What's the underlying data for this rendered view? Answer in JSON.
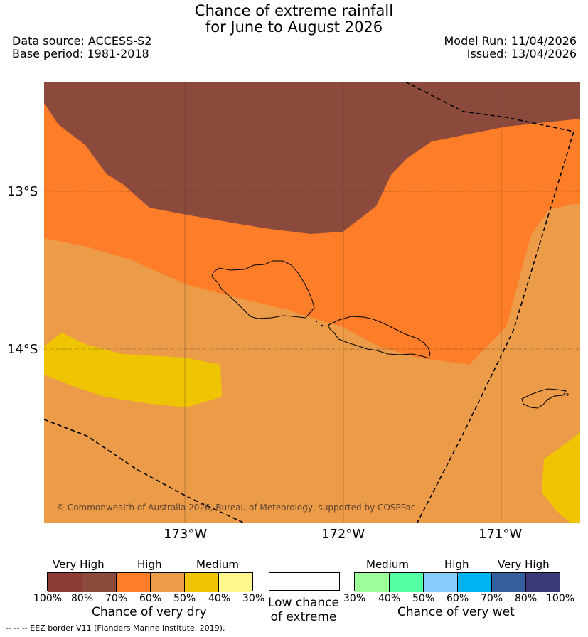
{
  "header": {
    "title_line1": "Chance of extreme rainfall",
    "title_line2": "for June to August 2026",
    "data_source": "Data source: ACCESS-S2",
    "base_period": "Base period: 1981-2018",
    "model_run": "Model Run: 11/04/2026",
    "issued": "Issued: 13/04/2026"
  },
  "map": {
    "lat_labels": [
      "13°S",
      "14°S"
    ],
    "lon_labels": [
      "173°W",
      "172°W",
      "171°W"
    ],
    "copyright": "© Commonwealth of Australia 2026, Bureau of Meteorology, supported by COSPPac",
    "colors": {
      "very_high_dry_80": "#8b4a3b",
      "high_dry_70": "#fd7d28",
      "high_dry_60": "#ec9c48",
      "medium_dry_50": "#eec500"
    }
  },
  "legend": {
    "dry": {
      "category_labels": [
        "Very High",
        "High",
        "Medium"
      ],
      "percent_labels": [
        "100%",
        "80%",
        "70%",
        "60%",
        "50%",
        "40%",
        "30%"
      ],
      "caption": "Chance of very dry",
      "colors": [
        "#8b3b33",
        "#8b4a3b",
        "#fd7d28",
        "#ec9c48",
        "#eec500",
        "#fff68e"
      ]
    },
    "neutral": {
      "caption_line1": "Low chance",
      "caption_line2": "of extreme",
      "color": "#ffffff"
    },
    "wet": {
      "category_labels": [
        "Medium",
        "High",
        "Very High"
      ],
      "percent_labels": [
        "30%",
        "40%",
        "50%",
        "60%",
        "70%",
        "80%",
        "100%"
      ],
      "caption": "Chance of very wet",
      "colors": [
        "#9dff9a",
        "#53ffa3",
        "#86ccfc",
        "#00b2ef",
        "#345f9e",
        "#3c3979"
      ]
    }
  },
  "footer": {
    "eez_note": "-- -- -- EEZ border V11 (Flanders Marine Institute, 2019)."
  }
}
